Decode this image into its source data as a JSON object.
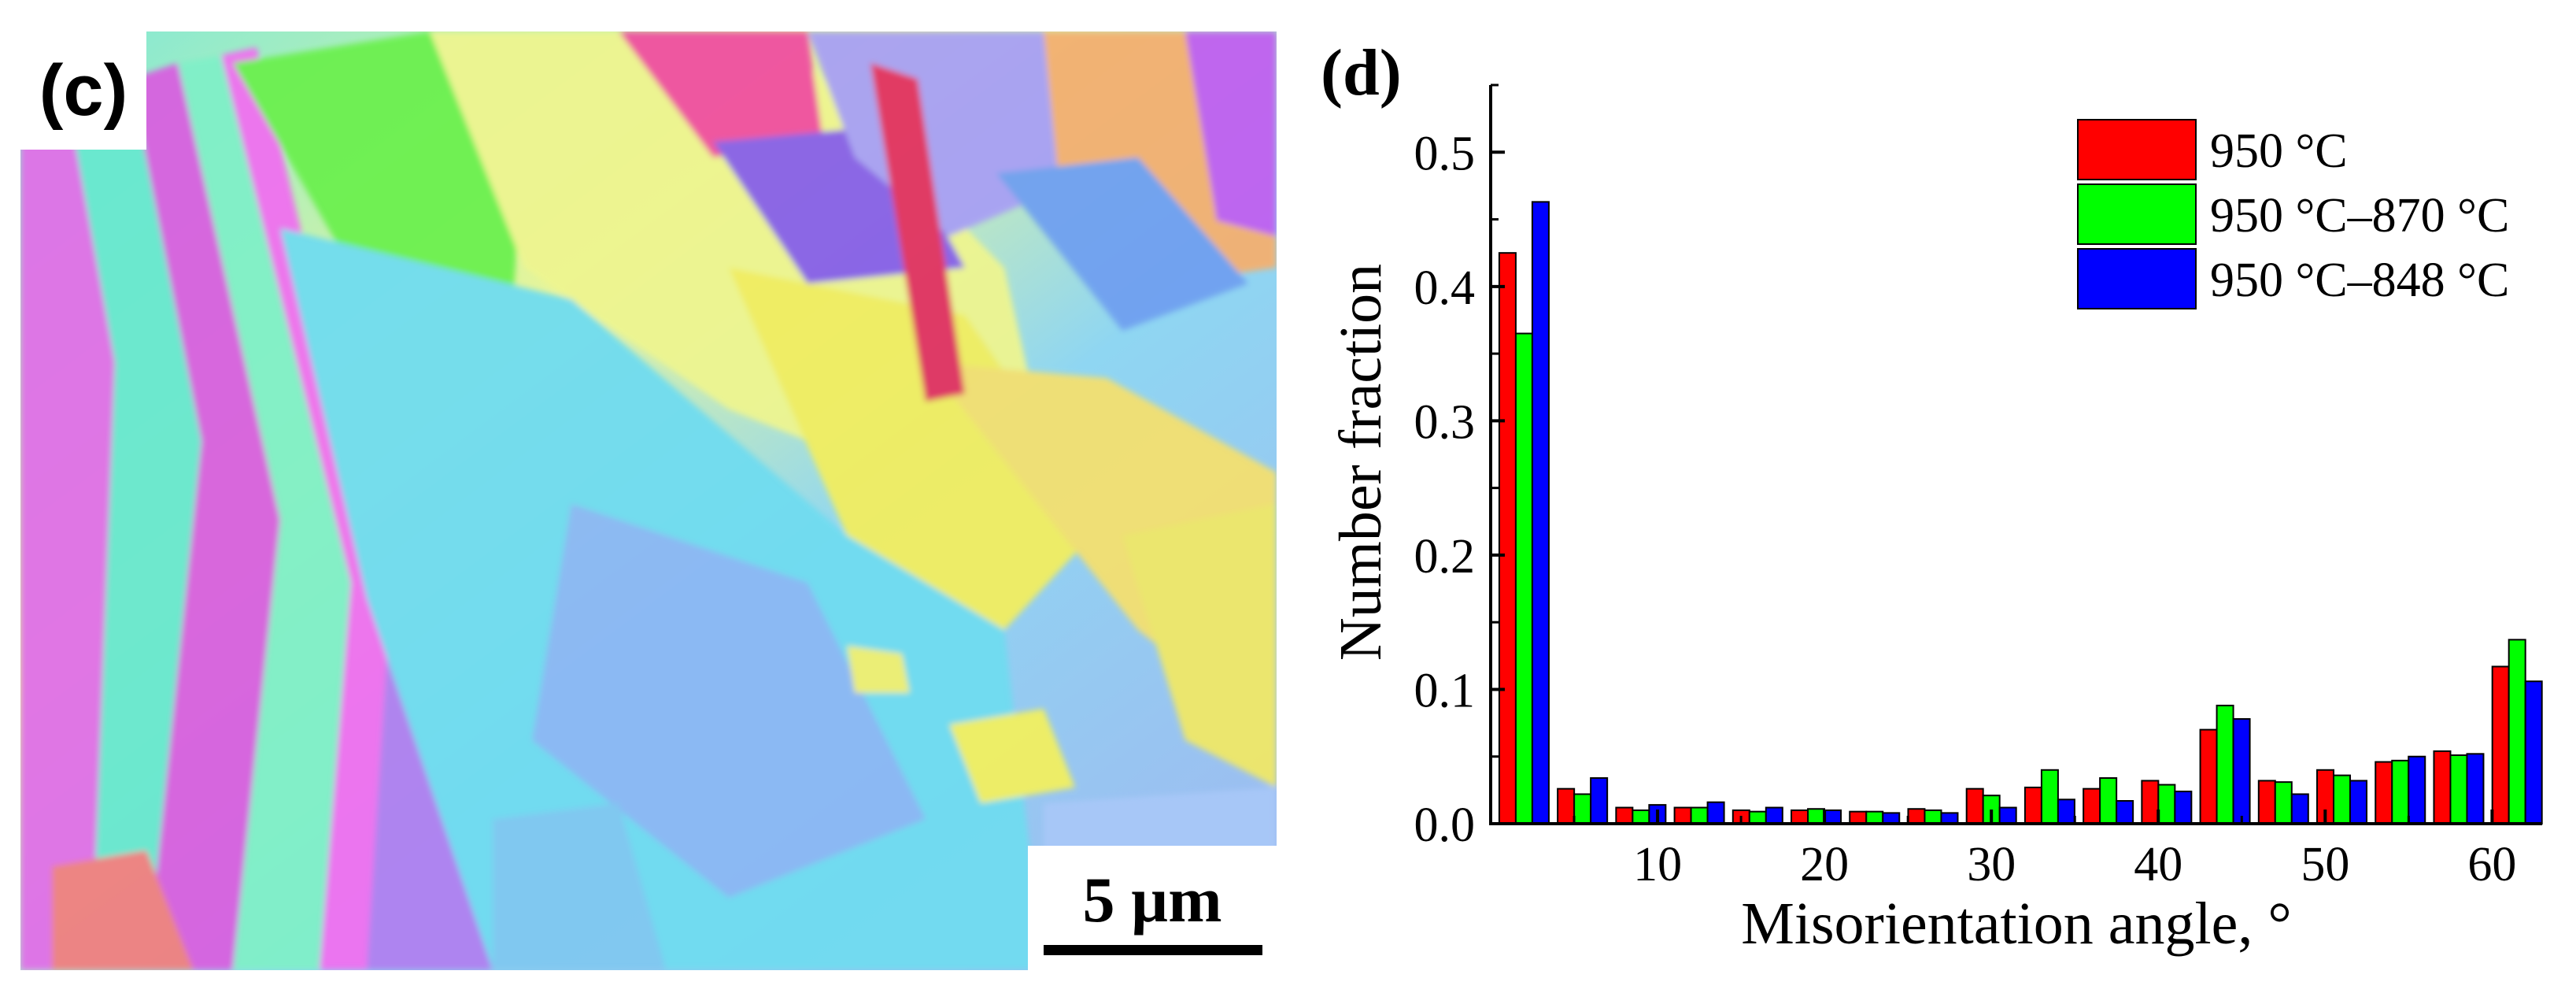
{
  "panel_c": {
    "label": "(c)",
    "scale_label": "5 µm"
  },
  "chart_data": {
    "type": "bar",
    "panel_label": "(d)",
    "title": "",
    "xlabel": "Misorientation angle, °",
    "ylabel": "Number fraction",
    "xlim": [
      0,
      63
    ],
    "ylim": [
      0,
      0.55
    ],
    "xticks": [
      10,
      20,
      30,
      40,
      50,
      60
    ],
    "yticks": [
      0.0,
      0.1,
      0.2,
      0.3,
      0.4,
      0.5
    ],
    "ytick_labels": [
      "0.0",
      "0.1",
      "0.2",
      "0.3",
      "0.4",
      "0.5"
    ],
    "legend_position": "top-right",
    "bin_centers": [
      2,
      5.5,
      9,
      12.5,
      16,
      19.5,
      23,
      26.5,
      30,
      33.5,
      37,
      40.5,
      44,
      47.5,
      51,
      54.5,
      58,
      61.5
    ],
    "series": [
      {
        "name": "950 °C",
        "color": "#ff0000",
        "values": [
          0.425,
          0.026,
          0.012,
          0.012,
          0.01,
          0.01,
          0.009,
          0.011,
          0.026,
          0.027,
          0.026,
          0.032,
          0.07,
          0.032,
          0.04,
          0.046,
          0.054,
          0.117
        ]
      },
      {
        "name": "950 °C–870 °C",
        "color": "#00ff00",
        "values": [
          0.365,
          0.022,
          0.01,
          0.012,
          0.009,
          0.011,
          0.009,
          0.01,
          0.021,
          0.04,
          0.034,
          0.029,
          0.088,
          0.031,
          0.036,
          0.047,
          0.051,
          0.137
        ]
      },
      {
        "name": "950 °C–848 °C",
        "color": "#0000ff",
        "values": [
          0.463,
          0.034,
          0.014,
          0.016,
          0.012,
          0.01,
          0.008,
          0.008,
          0.012,
          0.018,
          0.017,
          0.024,
          0.078,
          0.022,
          0.032,
          0.05,
          0.052,
          0.106
        ]
      }
    ]
  }
}
